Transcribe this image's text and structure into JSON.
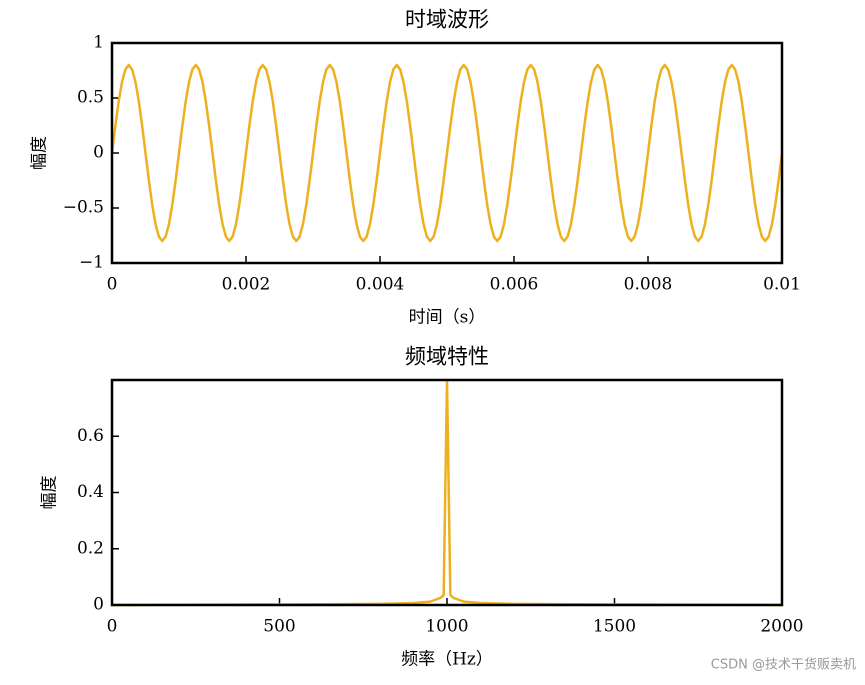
{
  "chart_data": [
    {
      "type": "line",
      "title": "时域波形",
      "x_label": "时间（s）",
      "y_label": "幅度",
      "xlim": [
        0,
        0.01
      ],
      "xticks": [
        0,
        0.002,
        0.004,
        0.006,
        0.008,
        0.01
      ],
      "ylim": [
        -1,
        1
      ],
      "yticks": [
        {
          "value": -1,
          "label": "−1"
        },
        {
          "value": -0.5,
          "label": "−0.5"
        },
        0,
        0.5,
        1
      ],
      "series": [
        {
          "color": "#edb120",
          "x": [
            0,
            5e-05,
            0.0001,
            0.00015,
            0.0002,
            0.00025,
            0.0003,
            0.00035,
            0.0004,
            0.00045,
            0.0005,
            0.00055,
            0.0006,
            0.00065,
            0.0007,
            0.00075,
            0.0008,
            0.00085,
            0.0009,
            0.00095,
            0.001,
            0.00105,
            0.0011,
            0.00115,
            0.0012,
            0.00125,
            0.0013,
            0.00135,
            0.0014,
            0.00145,
            0.0015,
            0.00155,
            0.0016,
            0.00165,
            0.0017,
            0.00175,
            0.0018,
            0.00185,
            0.0019,
            0.00195,
            0.002,
            0.00205,
            0.0021,
            0.00215,
            0.0022,
            0.00225,
            0.0023,
            0.00235,
            0.0024,
            0.00245,
            0.0025,
            0.00255,
            0.0026,
            0.00265,
            0.0027,
            0.00275,
            0.0028,
            0.00285,
            0.0029,
            0.00295,
            0.003,
            0.00305,
            0.0031,
            0.00315,
            0.0032,
            0.00325,
            0.0033,
            0.00335,
            0.0034,
            0.00345,
            0.0035,
            0.00355,
            0.0036,
            0.00365,
            0.0037,
            0.00375,
            0.0038,
            0.00385,
            0.0039,
            0.00395,
            0.004,
            0.00405,
            0.0041,
            0.00415,
            0.0042,
            0.00425,
            0.0043,
            0.00435,
            0.0044,
            0.00445,
            0.0045,
            0.00455,
            0.0046,
            0.00465,
            0.0047,
            0.00475,
            0.0048,
            0.00485,
            0.0049,
            0.00495,
            0.005,
            0.00505,
            0.0051,
            0.00515,
            0.0052,
            0.00525,
            0.0053,
            0.00535,
            0.0054,
            0.00545,
            0.0055,
            0.00555,
            0.0056,
            0.00565,
            0.0057,
            0.00575,
            0.0058,
            0.00585,
            0.0059,
            0.00595,
            0.006,
            0.00605,
            0.0061,
            0.00615,
            0.0062,
            0.00625,
            0.0063,
            0.00635,
            0.0064,
            0.00645,
            0.0065,
            0.00655,
            0.0066,
            0.00665,
            0.0067,
            0.00675,
            0.0068,
            0.00685,
            0.0069,
            0.00695,
            0.007,
            0.00705,
            0.0071,
            0.00715,
            0.0072,
            0.00725,
            0.0073,
            0.00735,
            0.0074,
            0.00745,
            0.0075,
            0.00755,
            0.0076,
            0.00765,
            0.0077,
            0.00775,
            0.0078,
            0.00785,
            0.0079,
            0.00795,
            0.008,
            0.00805,
            0.0081,
            0.00815,
            0.0082,
            0.00825,
            0.0083,
            0.00835,
            0.0084,
            0.00845,
            0.0085,
            0.00855,
            0.0086,
            0.00865,
            0.0087,
            0.00875,
            0.0088,
            0.00885,
            0.0089,
            0.00895,
            0.009,
            0.00905,
            0.0091,
            0.00915,
            0.0092,
            0.00925,
            0.0093,
            0.00935,
            0.0094,
            0.00945,
            0.0095,
            0.00955,
            0.0096,
            0.00965,
            0.0097,
            0.00975,
            0.0098,
            0.00985,
            0.0099,
            0.00995,
            0.01
          ],
          "values": [
            0,
            0.2472,
            0.4702,
            0.6472,
            0.7608,
            0.8,
            0.7608,
            0.6472,
            0.4702,
            0.2472,
            0,
            -0.2472,
            -0.4702,
            -0.6472,
            -0.7608,
            -0.8,
            -0.7608,
            -0.6472,
            -0.4702,
            -0.2472,
            0,
            0.2472,
            0.4702,
            0.6472,
            0.7608,
            0.8,
            0.7608,
            0.6472,
            0.4702,
            0.2472,
            0,
            -0.2472,
            -0.4702,
            -0.6472,
            -0.7608,
            -0.8,
            -0.7608,
            -0.6472,
            -0.4702,
            -0.2472,
            0,
            0.2472,
            0.4702,
            0.6472,
            0.7608,
            0.8,
            0.7608,
            0.6472,
            0.4702,
            0.2472,
            0,
            -0.2472,
            -0.4702,
            -0.6472,
            -0.7608,
            -0.8,
            -0.7608,
            -0.6472,
            -0.4702,
            -0.2472,
            0,
            0.2472,
            0.4702,
            0.6472,
            0.7608,
            0.8,
            0.7608,
            0.6472,
            0.4702,
            0.2472,
            0,
            -0.2472,
            -0.4702,
            -0.6472,
            -0.7608,
            -0.8,
            -0.7608,
            -0.6472,
            -0.4702,
            -0.2472,
            0,
            0.2472,
            0.4702,
            0.6472,
            0.7608,
            0.8,
            0.7608,
            0.6472,
            0.4702,
            0.2472,
            0,
            -0.2472,
            -0.4702,
            -0.6472,
            -0.7608,
            -0.8,
            -0.7608,
            -0.6472,
            -0.4702,
            -0.2472,
            0,
            0.2472,
            0.4702,
            0.6472,
            0.7608,
            0.8,
            0.7608,
            0.6472,
            0.4702,
            0.2472,
            0,
            -0.2472,
            -0.4702,
            -0.6472,
            -0.7608,
            -0.8,
            -0.7608,
            -0.6472,
            -0.4702,
            -0.2472,
            0,
            0.2472,
            0.4702,
            0.6472,
            0.7608,
            0.8,
            0.7608,
            0.6472,
            0.4702,
            0.2472,
            0,
            -0.2472,
            -0.4702,
            -0.6472,
            -0.7608,
            -0.8,
            -0.7608,
            -0.6472,
            -0.4702,
            -0.2472,
            0,
            0.2472,
            0.4702,
            0.6472,
            0.7608,
            0.8,
            0.7608,
            0.6472,
            0.4702,
            0.2472,
            0,
            -0.2472,
            -0.4702,
            -0.6472,
            -0.7608,
            -0.8,
            -0.7608,
            -0.6472,
            -0.4702,
            -0.2472,
            0,
            0.2472,
            0.4702,
            0.6472,
            0.7608,
            0.8,
            0.7608,
            0.6472,
            0.4702,
            0.2472,
            0,
            -0.2472,
            -0.4702,
            -0.6472,
            -0.7608,
            -0.8,
            -0.7608,
            -0.6472,
            -0.4702,
            -0.2472,
            0,
            0.2472,
            0.4702,
            0.6472,
            0.7608,
            0.8,
            0.7608,
            0.6472,
            0.4702,
            0.2472,
            0,
            -0.2472,
            -0.4702,
            -0.6472,
            -0.7608,
            -0.8,
            -0.7608,
            -0.6472,
            -0.4702,
            -0.2472,
            0
          ]
        }
      ]
    },
    {
      "type": "line",
      "title": "频域特性",
      "x_label": "频率（Hz）",
      "y_label": "幅度",
      "xlim": [
        0,
        2000
      ],
      "xticks": [
        0,
        500,
        1000,
        1500,
        2000
      ],
      "ylim": [
        0,
        0.8
      ],
      "yticks": [
        0,
        0.2,
        0.4,
        0.6
      ],
      "series": [
        {
          "color": "#edb120",
          "x": [
            0,
            500,
            800,
            900,
            950,
            980,
            990,
            1000,
            1010,
            1020,
            1050,
            1100,
            1200,
            1500,
            2000
          ],
          "values": [
            0,
            0.002,
            0.004,
            0.007,
            0.012,
            0.025,
            0.035,
            0.8,
            0.035,
            0.025,
            0.012,
            0.007,
            0.004,
            0.002,
            0
          ]
        }
      ]
    }
  ],
  "watermark": "CSDN @技术干货贩卖机"
}
